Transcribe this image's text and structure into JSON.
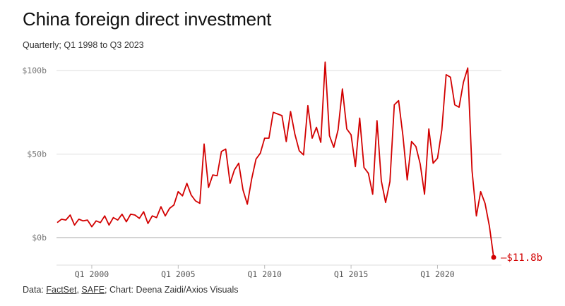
{
  "title": "China foreign direct investment",
  "subtitle": "Quarterly; Q1 1998 to Q3 2023",
  "source": {
    "prefix": "Data: ",
    "link1": "FactSet",
    "sep": ", ",
    "link2": "SAFE",
    "suffix": "; Chart: Deena Zaidi/Axios Visuals"
  },
  "colors": {
    "line": "#d20000",
    "grid": "#dddddd",
    "axis": "#bbbbbb"
  },
  "chart_data": {
    "type": "line",
    "title": "China foreign direct investment",
    "subtitle": "Quarterly; Q1 1998 to Q3 2023",
    "xlabel": "",
    "ylabel": "",
    "ylim": [
      -14,
      106
    ],
    "yticks": [
      0,
      50,
      100
    ],
    "ytick_labels": [
      "$0b",
      "$50b",
      "$100b"
    ],
    "xticks": [
      "Q1 2000",
      "Q1 2005",
      "Q1 2010",
      "Q1 2015",
      "Q1 2020"
    ],
    "xtick_years": [
      2000,
      2005,
      2010,
      2015,
      2020
    ],
    "grid": true,
    "end_label": "–$11.8b",
    "series": [
      {
        "start": "Q1 1998",
        "values": [
          9,
          11,
          10.5,
          13.5,
          7.5,
          11,
          10,
          10.5,
          6.5,
          10,
          9,
          13,
          7.5,
          12,
          10.5,
          14,
          9.5,
          14,
          13.5,
          11.5,
          15.5,
          8.5,
          13,
          12,
          18.5,
          13,
          17.5,
          19.5,
          27.5,
          25,
          32.5,
          25.5,
          22,
          20.5,
          56,
          30,
          37.5,
          37,
          51.5,
          53,
          32.5,
          40.5,
          44.5,
          28.5,
          20,
          35,
          47,
          50.5,
          59.5,
          59.5,
          75,
          74,
          73,
          57.5,
          75.5,
          62,
          52,
          49.5,
          79,
          59.5,
          66,
          57,
          105,
          61,
          54,
          64.5,
          89,
          65,
          61.5,
          42.5,
          71.5,
          42,
          38.5,
          26,
          70,
          34,
          21,
          33.5,
          79.5,
          82,
          61,
          34.5,
          57.5,
          54.5,
          44,
          26,
          65,
          44.5,
          47.5,
          64.5,
          97.5,
          96,
          79.5,
          78,
          93,
          101.5,
          40,
          13,
          27.5,
          20.5,
          7,
          -11.8
        ]
      }
    ]
  }
}
